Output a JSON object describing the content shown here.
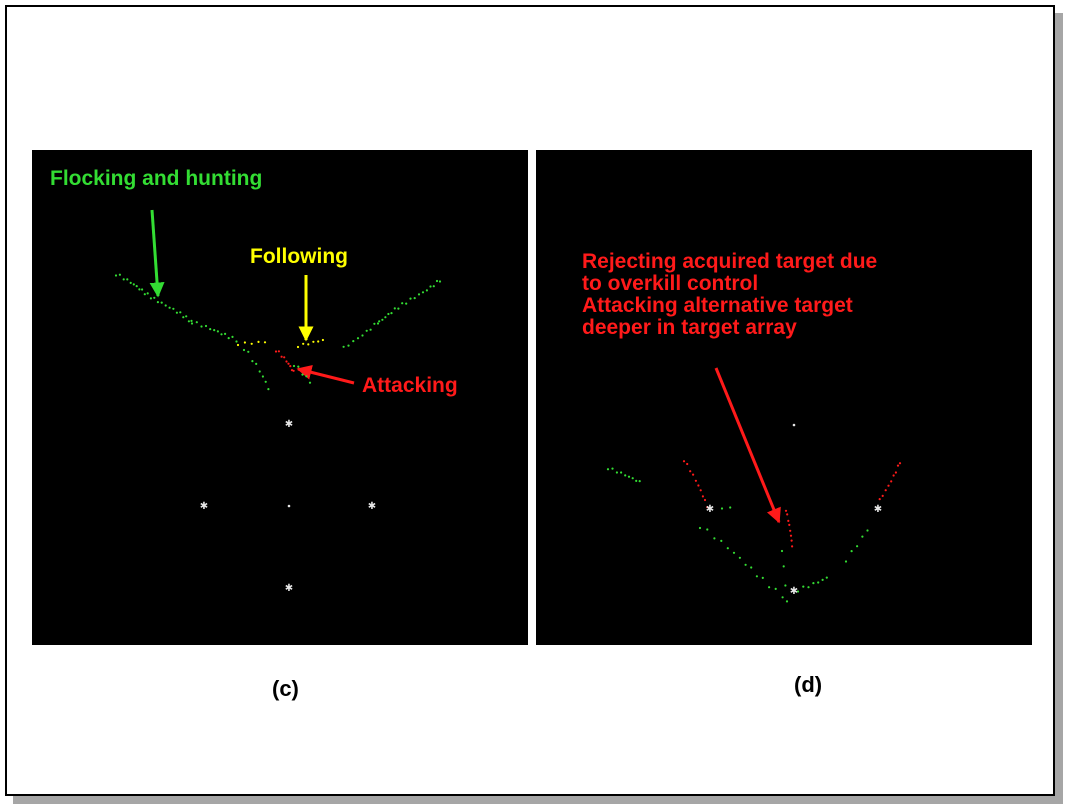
{
  "panels": [
    {
      "id": "c",
      "caption": "(c)",
      "labels": {
        "flocking": "Flocking and hunting",
        "following": "Following",
        "attacking": "Attacking"
      }
    },
    {
      "id": "d",
      "caption": "(d)",
      "labels": {
        "line1": "Rejecting acquired target due",
        "line2": "to overkill control",
        "line3": "Attacking alternative target",
        "line4": "deeper in target array"
      }
    }
  ],
  "colors": {
    "background": "#000000",
    "flocking": "#33dd33",
    "following": "#ffff00",
    "attacking": "#ff1a1a",
    "target": "#e6e6e6"
  }
}
